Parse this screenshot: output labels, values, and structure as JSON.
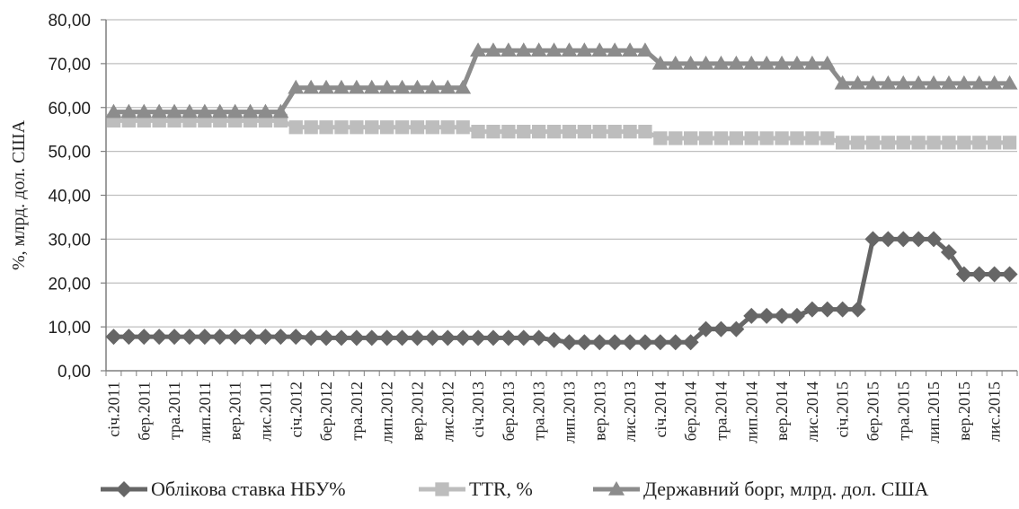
{
  "chart_data": {
    "type": "line",
    "ylabel": "%, млрд. дол. США",
    "ylim": [
      0,
      80
    ],
    "yticks": [
      "0,00",
      "10,00",
      "20,00",
      "30,00",
      "40,00",
      "50,00",
      "60,00",
      "70,00",
      "80,00"
    ],
    "grid": true,
    "legend_position": "bottom",
    "categories": [
      "січ.2011",
      "",
      "бер.2011",
      "",
      "тра.2011",
      "",
      "лип.2011",
      "",
      "вер.2011",
      "",
      "лис.2011",
      "",
      "січ.2012",
      "",
      "бер.2012",
      "",
      "тра.2012",
      "",
      "лип.2012",
      "",
      "вер.2012",
      "",
      "лис.2012",
      "",
      "січ.2013",
      "",
      "бер.2013",
      "",
      "тра.2013",
      "",
      "лип.2013",
      "",
      "вер.2013",
      "",
      "лис.2013",
      "",
      "січ.2014",
      "",
      "бер.2014",
      "",
      "тра.2014",
      "",
      "лип.2014",
      "",
      "вер.2014",
      "",
      "лис.2014",
      "",
      "січ.2015",
      "",
      "бер.2015",
      "",
      "тра.2015",
      "",
      "лип.2015",
      "",
      "вер.2015",
      "",
      "лис.2015",
      ""
    ],
    "series": [
      {
        "name": "Облікова ставка НБУ%",
        "color": "#666666",
        "marker": "diamond",
        "values": [
          7.75,
          7.75,
          7.75,
          7.75,
          7.75,
          7.75,
          7.75,
          7.75,
          7.75,
          7.75,
          7.75,
          7.75,
          7.75,
          7.5,
          7.5,
          7.5,
          7.5,
          7.5,
          7.5,
          7.5,
          7.5,
          7.5,
          7.5,
          7.5,
          7.5,
          7.5,
          7.5,
          7.5,
          7.5,
          7.0,
          6.5,
          6.5,
          6.5,
          6.5,
          6.5,
          6.5,
          6.5,
          6.5,
          6.5,
          9.5,
          9.5,
          9.5,
          12.5,
          12.5,
          12.5,
          12.5,
          14.0,
          14.0,
          14.0,
          14.0,
          30.0,
          30.0,
          30.0,
          30.0,
          30.0,
          27.0,
          22.0,
          22.0,
          22.0,
          22.0
        ]
      },
      {
        "name": "TTR, %",
        "color": "#bdbdbd",
        "marker": "square",
        "values": [
          57,
          57,
          57,
          57,
          57,
          57,
          57,
          57,
          57,
          57,
          57,
          57,
          55.5,
          55.5,
          55.5,
          55.5,
          55.5,
          55.5,
          55.5,
          55.5,
          55.5,
          55.5,
          55.5,
          55.5,
          54.5,
          54.5,
          54.5,
          54.5,
          54.5,
          54.5,
          54.5,
          54.5,
          54.5,
          54.5,
          54.5,
          54.5,
          53,
          53,
          53,
          53,
          53,
          53,
          53,
          53,
          53,
          53,
          53,
          53,
          52,
          52,
          52,
          52,
          52,
          52,
          52,
          52,
          52,
          52,
          52,
          52
        ]
      },
      {
        "name": "Державний борг, млрд. дол. США",
        "color": "#8c8c8c",
        "marker": "triangle",
        "values": [
          59,
          59,
          59,
          59,
          59,
          59,
          59,
          59,
          59,
          59,
          59,
          59,
          64.5,
          64.5,
          64.5,
          64.5,
          64.5,
          64.5,
          64.5,
          64.5,
          64.5,
          64.5,
          64.5,
          64.5,
          73,
          73,
          73,
          73,
          73,
          73,
          73,
          73,
          73,
          73,
          73,
          73,
          70,
          70,
          70,
          70,
          70,
          70,
          70,
          70,
          70,
          70,
          70,
          70,
          65.5,
          65.5,
          65.5,
          65.5,
          65.5,
          65.5,
          65.5,
          65.5,
          65.5,
          65.5,
          65.5,
          65.5
        ]
      }
    ]
  }
}
